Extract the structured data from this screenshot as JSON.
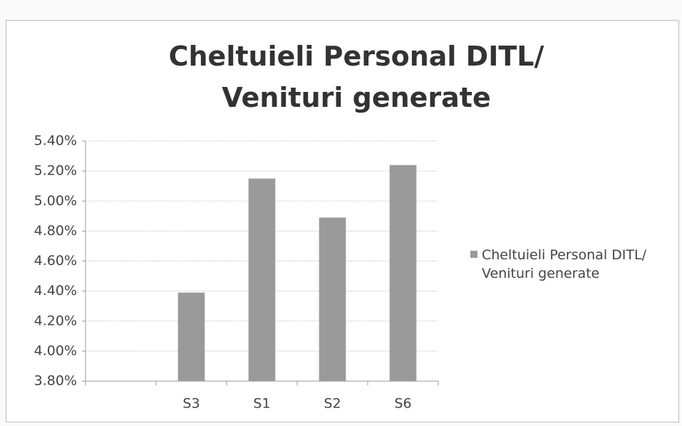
{
  "chart_data": {
    "type": "bar",
    "title": "Cheltuieli Personal DITL/ Venituri generate",
    "categories": [
      null,
      "S3",
      "S1",
      "S2",
      "S6"
    ],
    "series": [
      {
        "name": "Cheltuieli Personal DITL/ Venituri generate",
        "color": "#9a9a9a",
        "values": [
          null,
          4.39,
          5.15,
          4.89,
          5.24
        ]
      }
    ],
    "ylim": [
      3.8,
      5.4
    ],
    "yticks": [
      {
        "value": 3.8,
        "label": "3.80%"
      },
      {
        "value": 4.0,
        "label": "4.00%"
      },
      {
        "value": 4.2,
        "label": "4.20%"
      },
      {
        "value": 4.4,
        "label": "4.40%"
      },
      {
        "value": 4.6,
        "label": "4.60%"
      },
      {
        "value": 4.8,
        "label": "4.80%"
      },
      {
        "value": 5.0,
        "label": "5.00%"
      },
      {
        "value": 5.2,
        "label": "5.20%"
      },
      {
        "value": 5.4,
        "label": "5.40%"
      }
    ],
    "grid": true,
    "legend": "right"
  }
}
